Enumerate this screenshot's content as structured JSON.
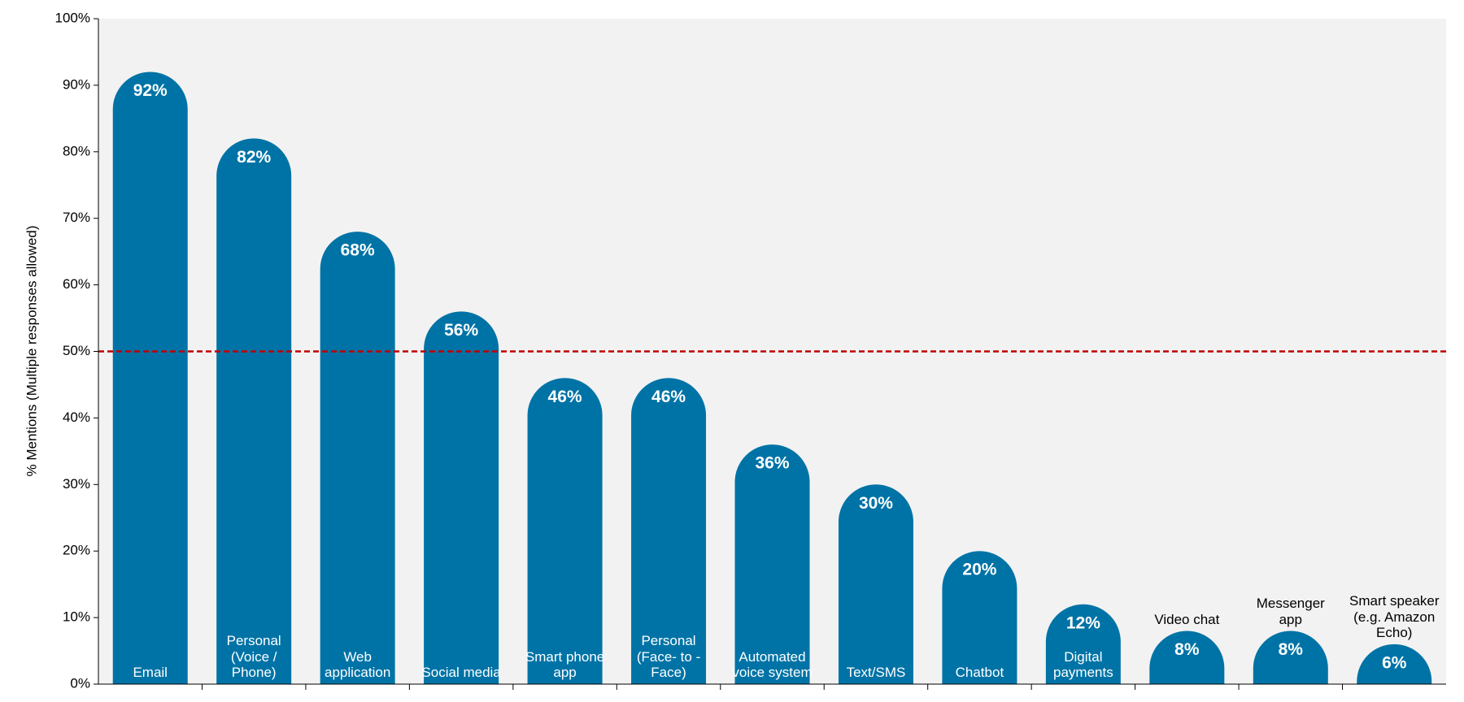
{
  "chart_data": {
    "type": "bar",
    "y_axis_label": "% Mentions (Multiple responses allowed)",
    "categories": [
      "Email",
      "Personal (Voice / Phone)",
      "Web application",
      "Social media",
      "Smart phone app",
      "Personal (Face- to - Face)",
      "Automated voice system",
      "Text/SMS",
      "Chatbot",
      "Digital payments",
      "Video chat",
      "Messenger app",
      "Smart speaker (e.g. Amazon Echo)"
    ],
    "values": [
      92,
      82,
      68,
      56,
      46,
      46,
      36,
      30,
      20,
      12,
      8,
      8,
      6
    ],
    "value_labels": [
      "92%",
      "82%",
      "68%",
      "56%",
      "46%",
      "46%",
      "36%",
      "30%",
      "20%",
      "12%",
      "8%",
      "8%",
      "6%"
    ],
    "color": "#0073a6",
    "reference_line": 50,
    "reference_color": "#c00000",
    "ylim": [
      0,
      100
    ],
    "yticks": [
      {
        "value": 0,
        "label": "0%"
      },
      {
        "value": 10,
        "label": "10%"
      },
      {
        "value": 20,
        "label": "20%"
      },
      {
        "value": 30,
        "label": "30%"
      },
      {
        "value": 40,
        "label": "40%"
      },
      {
        "value": 50,
        "label": "50%"
      },
      {
        "value": 60,
        "label": "60%"
      },
      {
        "value": 70,
        "label": "70%"
      },
      {
        "value": 80,
        "label": "80%"
      },
      {
        "value": 90,
        "label": "90%"
      },
      {
        "value": 100,
        "label": "100%"
      }
    ]
  }
}
